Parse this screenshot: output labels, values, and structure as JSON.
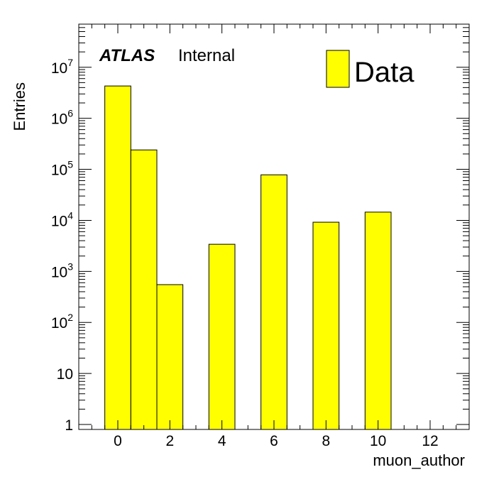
{
  "chart_data": {
    "type": "bar",
    "histogram": true,
    "x": [
      0,
      1,
      2,
      4,
      6,
      8,
      10
    ],
    "bin_width": 1,
    "series": [
      {
        "name": "Data",
        "values": [
          4300000,
          240000,
          550,
          3400,
          78000,
          9200,
          14500
        ],
        "color": "#ffff00"
      }
    ],
    "xlabel": "muon_author",
    "ylabel": "Entries",
    "xlim": [
      -1.5,
      13.5
    ],
    "ylim": [
      0.8,
      70000000
    ],
    "yscale": "log",
    "x_ticks": [
      "0",
      "2",
      "4",
      "6",
      "8",
      "10",
      "12"
    ],
    "y_ticks": [
      {
        "value": 1,
        "base": "1",
        "exp": ""
      },
      {
        "value": 10,
        "base": "10",
        "exp": ""
      },
      {
        "value": 100,
        "base": "10",
        "exp": "2"
      },
      {
        "value": 1000,
        "base": "10",
        "exp": "3"
      },
      {
        "value": 10000,
        "base": "10",
        "exp": "4"
      },
      {
        "value": 100000,
        "base": "10",
        "exp": "5"
      },
      {
        "value": 1000000,
        "base": "10",
        "exp": "6"
      },
      {
        "value": 10000000,
        "base": "10",
        "exp": "7"
      }
    ],
    "grid": false,
    "legend_position": "top-right",
    "bar_color": "#ffff00",
    "edge_color": "#000000",
    "label_bold": "ATLAS",
    "label_text": "Internal"
  }
}
